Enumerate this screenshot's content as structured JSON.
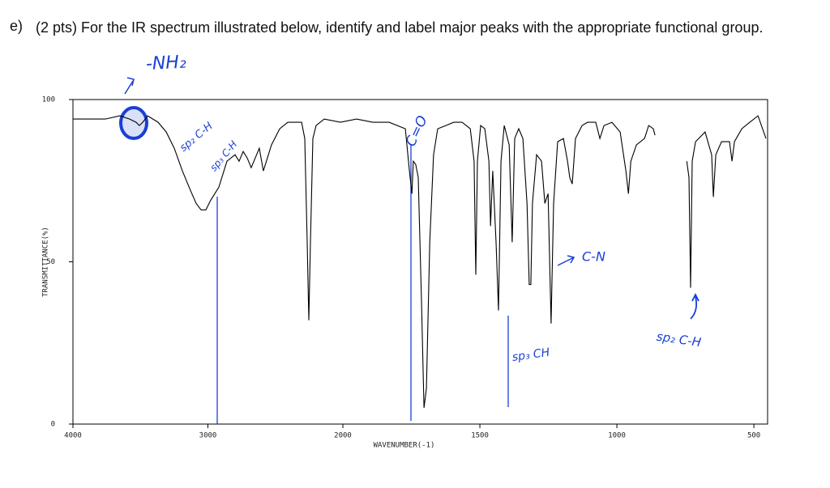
{
  "question": {
    "label": "e)",
    "text": "(2 pts) For the IR spectrum illustrated below, identify and label major peaks with the appropriate functional group."
  },
  "chart_data": {
    "type": "line",
    "x_label": "WAVENUMBER(-1)",
    "y_label": "TRANSMITTANCE(%)",
    "color": "#000000",
    "xlim": [
      4000,
      450
    ],
    "x_break": 2000,
    "ylim": [
      0,
      100
    ],
    "xticks": [
      4000,
      3000,
      2000,
      1500,
      1000,
      500
    ],
    "yticks": [
      0,
      50,
      100
    ],
    "x": [
      4000,
      3760,
      3652,
      3580,
      3532,
      3508,
      3483,
      3447,
      3369,
      3309,
      3249,
      3189,
      3129,
      3087,
      3051,
      3015,
      2979,
      2949,
      2919,
      2889,
      2859,
      2829,
      2799,
      2769,
      2739,
      2709,
      2679,
      2649,
      2619,
      2589,
      2559,
      2529,
      2468,
      2408,
      2348,
      2306,
      2282,
      2264,
      2252,
      2240,
      2222,
      2198,
      2138,
      2018,
      1950,
      1891,
      1831,
      1772,
      1757,
      1748,
      1743,
      1734,
      1725,
      1713,
      1704,
      1695,
      1683,
      1669,
      1654,
      1624,
      1595,
      1565,
      1535,
      1521,
      1515,
      1509,
      1497,
      1482,
      1467,
      1461,
      1453,
      1441,
      1432,
      1423,
      1411,
      1393,
      1382,
      1373,
      1358,
      1343,
      1328,
      1320,
      1314,
      1308,
      1293,
      1275,
      1263,
      1251,
      1240,
      1231,
      1216,
      1195,
      1180,
      1172,
      1163,
      1151,
      1127,
      1107,
      1077,
      1062,
      1047,
      1018,
      988,
      967,
      958,
      949,
      929,
      899,
      884,
      867,
      861,
      800,
      745,
      737,
      731,
      725,
      713,
      678,
      654,
      648,
      639,
      618,
      589,
      580,
      571,
      544,
      515,
      485,
      456
    ],
    "values": [
      94,
      94,
      95,
      94,
      93,
      92,
      93,
      95,
      93,
      90,
      85,
      78,
      72,
      68,
      66,
      66,
      69,
      71,
      73,
      77,
      81,
      82,
      83,
      81,
      84,
      82,
      79,
      82,
      85,
      78,
      82,
      86,
      91,
      93,
      93,
      93,
      88,
      56,
      32,
      56,
      88,
      92,
      94,
      93,
      94,
      93,
      93,
      91,
      78,
      71,
      81,
      80,
      76,
      38,
      5,
      11,
      56,
      83,
      91,
      92,
      93,
      93,
      91,
      81,
      46,
      81,
      92,
      91,
      81,
      61,
      78,
      56,
      35,
      81,
      92,
      86,
      56,
      88,
      91,
      88,
      68,
      43,
      43,
      68,
      83,
      81,
      68,
      71,
      31,
      68,
      87,
      88,
      81,
      76,
      74,
      88,
      92,
      93,
      93,
      88,
      92,
      93,
      90,
      78,
      71,
      81,
      86,
      88,
      92,
      91,
      89,
      null,
      81,
      76,
      42,
      81,
      87,
      90,
      83,
      70,
      83,
      87,
      87,
      81,
      87,
      91,
      93,
      95,
      88
    ]
  },
  "annotations": [
    "-NH₂",
    "sp₂ C-H",
    "sp₃ C-H",
    "C=O",
    "C-N",
    "sp₃ CH",
    "sp₂ C-H"
  ]
}
